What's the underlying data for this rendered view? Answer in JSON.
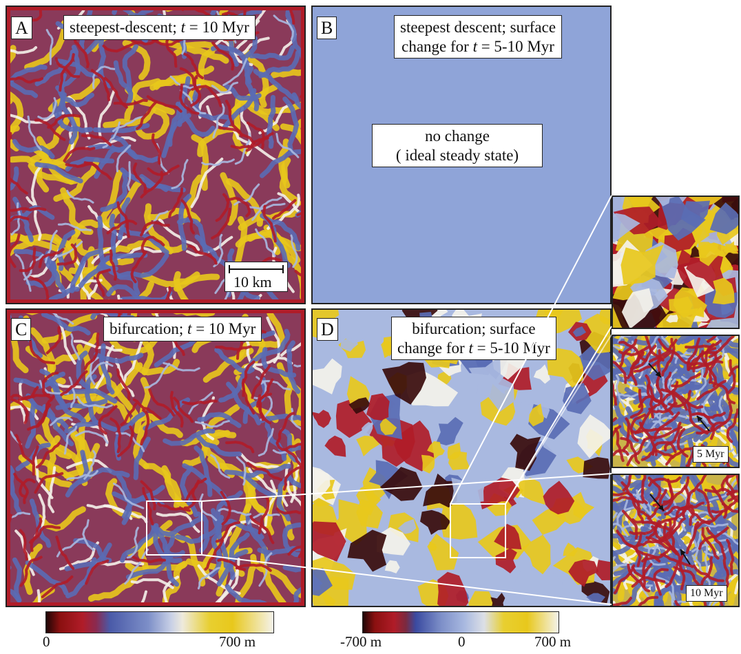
{
  "panels": {
    "A": {
      "letter": "A",
      "title_pre": "steepest-descent; ",
      "title_var": "t",
      "title_post": " = 10 Myr",
      "scale_label": "10 km"
    },
    "B": {
      "letter": "B",
      "title_l1": "steepest descent; surface",
      "title_l2_pre": "change for ",
      "title_l2_var": "t",
      "title_l2_post": " = 5-10 Myr",
      "note_l1": "no change",
      "note_l2": "( ideal  steady state)",
      "fill": "#8fa4d8"
    },
    "C": {
      "letter": "C",
      "title_pre": "bifurcation; ",
      "title_var": "t",
      "title_post": " = 10 Myr"
    },
    "D": {
      "letter": "D",
      "title_l1": "bifurcation; surface",
      "title_l2_pre": "change for ",
      "title_l2_var": "t",
      "title_l2_post": " = 5-10 Myr"
    }
  },
  "insets": {
    "mid_label": "5 Myr",
    "bottom_label": "10 Myr"
  },
  "colorbars": {
    "left": {
      "min_label": "0",
      "max_label": "700 m"
    },
    "right": {
      "min_label": "-700 m",
      "mid_label": "0",
      "max_label": "700 m"
    }
  },
  "colors": {
    "dark_red": "#3a0c0c",
    "red": "#b01c28",
    "blue": "#5a6cb4",
    "light_blue": "#a9b9e0",
    "white": "#f4f2ea",
    "yellow": "#e8c81c"
  }
}
